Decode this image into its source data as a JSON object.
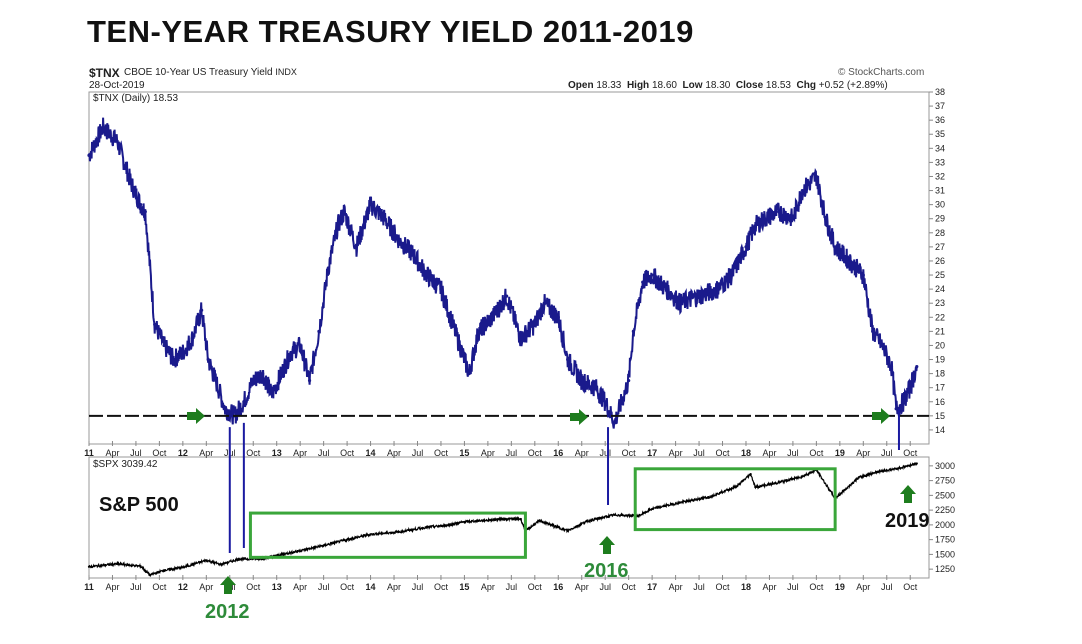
{
  "page_title": "TEN-YEAR TREASURY YIELD 2011-2019",
  "header": {
    "symbol": "$TNX",
    "description": "CBOE 10-Year US Treasury Yield",
    "exchange": "INDX",
    "date": "28-Oct-2019",
    "source": "© StockCharts.com",
    "open_label": "Open",
    "open": "18.33",
    "high_label": "High",
    "high": "18.60",
    "low_label": "Low",
    "low": "18.30",
    "close_label": "Close",
    "close": "18.53",
    "chg_label": "Chg",
    "chg": "+0.52 (+2.89%)"
  },
  "chart_data": [
    {
      "type": "line",
      "title": "$TNX (Daily) 18.53",
      "series_label": "$TNX (Daily) 18.53",
      "color": "#1a1a8c",
      "ylim": [
        13,
        38
      ],
      "y_ticks": [
        "14",
        "15",
        "16",
        "17",
        "18",
        "19",
        "20",
        "21",
        "22",
        "23",
        "24",
        "25",
        "26",
        "27",
        "28",
        "29",
        "30",
        "31",
        "32",
        "33",
        "34",
        "35",
        "36",
        "37",
        "38"
      ],
      "support_level": 15,
      "x_time": [
        2011.0,
        2011.15,
        2011.3,
        2011.45,
        2011.55,
        2011.6,
        2011.7,
        2011.8,
        2011.9,
        2012.0,
        2012.1,
        2012.2,
        2012.27,
        2012.35,
        2012.45,
        2012.55,
        2012.65,
        2012.75,
        2012.85,
        2012.95,
        2013.05,
        2013.15,
        2013.25,
        2013.35,
        2013.45,
        2013.55,
        2013.65,
        2013.72,
        2013.85,
        2014.0,
        2014.15,
        2014.3,
        2014.45,
        2014.6,
        2014.75,
        2014.85,
        2014.95,
        2015.05,
        2015.15,
        2015.3,
        2015.45,
        2015.6,
        2015.75,
        2015.85,
        2016.0,
        2016.1,
        2016.25,
        2016.4,
        2016.5,
        2016.6,
        2016.75,
        2016.8,
        2016.9,
        2017.0,
        2017.15,
        2017.3,
        2017.5,
        2017.7,
        2017.85,
        2018.0,
        2018.1,
        2018.2,
        2018.35,
        2018.5,
        2018.6,
        2018.75,
        2018.85,
        2018.95,
        2019.1,
        2019.25,
        2019.35,
        2019.45,
        2019.55,
        2019.6,
        2019.68,
        2019.75,
        2019.82
      ],
      "values": [
        33.5,
        35.5,
        34.5,
        31.5,
        30,
        29.5,
        21.5,
        20,
        19,
        19.5,
        20.5,
        22.5,
        19,
        17.5,
        15.5,
        15,
        16,
        17.5,
        18,
        16.5,
        18,
        19.5,
        20,
        17.5,
        21,
        25.5,
        28.5,
        29.5,
        27,
        30,
        29,
        27.5,
        26.5,
        25,
        24,
        22,
        20,
        18,
        21,
        22,
        23.5,
        20.5,
        21.5,
        23,
        22,
        19,
        17.5,
        17,
        16,
        14.5,
        17.5,
        21,
        24.5,
        25,
        24,
        23,
        23.5,
        24,
        25,
        27,
        28.5,
        29,
        29.5,
        29,
        31,
        32,
        29,
        27,
        26,
        25,
        21,
        20,
        18.5,
        15.5,
        16,
        17,
        18.5
      ],
      "x_tick_labels": [
        "11",
        "Apr",
        "Jul",
        "Oct",
        "12",
        "Apr",
        "Jul",
        "Oct",
        "13",
        "Apr",
        "Jul",
        "Oct",
        "14",
        "Apr",
        "Jul",
        "Oct",
        "15",
        "Apr",
        "Jul",
        "Oct",
        "16",
        "Apr",
        "Jul",
        "Oct",
        "17",
        "Apr",
        "Jul",
        "Oct",
        "18",
        "Apr",
        "Jul",
        "Oct",
        "19",
        "Apr",
        "Jul",
        "Oct"
      ],
      "annotations": [
        "right-arrow 2012 low",
        "right-arrow 2016 low",
        "right-arrow 2019 low"
      ]
    },
    {
      "type": "line",
      "title": "$SPX 3039.42",
      "series_label": "$SPX 3039.42",
      "panel_label": "S&P 500",
      "color": "#000000",
      "ylim": [
        1100,
        3150
      ],
      "y_ticks": [
        "1250",
        "1500",
        "1750",
        "2000",
        "2250",
        "2500",
        "2750",
        "3000"
      ],
      "x_time": [
        2011.0,
        2011.3,
        2011.55,
        2011.65,
        2011.8,
        2012.0,
        2012.25,
        2012.4,
        2012.6,
        2012.85,
        2013.0,
        2013.3,
        2013.5,
        2013.75,
        2014.0,
        2014.3,
        2014.6,
        2014.8,
        2015.0,
        2015.4,
        2015.6,
        2015.65,
        2015.8,
        2016.1,
        2016.3,
        2016.6,
        2016.85,
        2017.0,
        2017.3,
        2017.6,
        2017.9,
        2018.05,
        2018.1,
        2018.3,
        2018.6,
        2018.75,
        2018.95,
        2019.2,
        2019.4,
        2019.6,
        2019.82
      ],
      "values": [
        1290,
        1340,
        1300,
        1150,
        1230,
        1280,
        1400,
        1330,
        1420,
        1430,
        1480,
        1580,
        1650,
        1750,
        1840,
        1880,
        1960,
        1990,
        2050,
        2100,
        2100,
        1900,
        2070,
        1900,
        2060,
        2170,
        2150,
        2270,
        2380,
        2470,
        2650,
        2860,
        2640,
        2700,
        2820,
        2930,
        2450,
        2800,
        2900,
        2950,
        3040
      ],
      "x_tick_labels": [
        "11",
        "Apr",
        "Jul",
        "Oct",
        "12",
        "Apr",
        "Jul",
        "Oct",
        "13",
        "Apr",
        "Jul",
        "Oct",
        "14",
        "Apr",
        "Jul",
        "Oct",
        "15",
        "Apr",
        "Jul",
        "Oct",
        "16",
        "Apr",
        "Jul",
        "Oct",
        "17",
        "Apr",
        "Jul",
        "Oct",
        "18",
        "Apr",
        "Jul",
        "Oct",
        "19",
        "Apr",
        "Jul",
        "Oct"
      ],
      "annotations": [
        "2012",
        "2016",
        "2019"
      ]
    }
  ],
  "annotations": {
    "label_2012": "2012",
    "label_2016": "2016",
    "label_2019": "2019",
    "spx_panel_label": "S&P 500",
    "arrow_color": "#1e7d1e",
    "box_color": "#3aa63a",
    "label_color": "#2e8b3a"
  }
}
